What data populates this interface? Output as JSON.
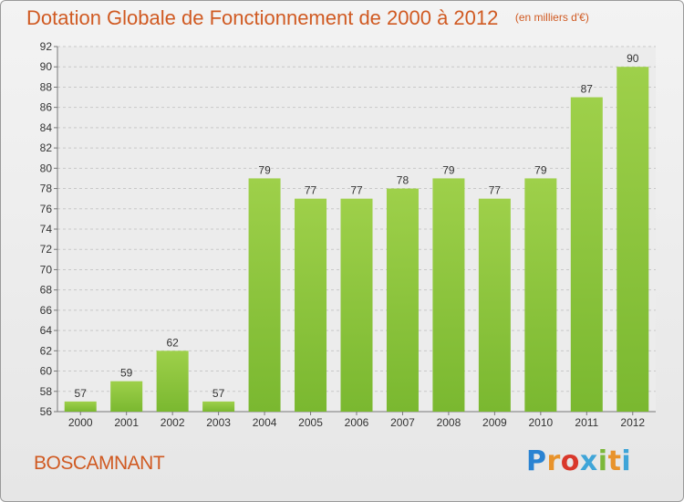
{
  "chart_data": {
    "type": "bar",
    "title": "Dotation Globale de Fonctionnement de 2000 à 2012",
    "unit": "(en milliers d'€)",
    "categories": [
      "2000",
      "2001",
      "2002",
      "2003",
      "2004",
      "2005",
      "2006",
      "2007",
      "2008",
      "2009",
      "2010",
      "2011",
      "2012"
    ],
    "values": [
      57,
      59,
      62,
      57,
      79,
      77,
      77,
      78,
      79,
      77,
      79,
      87,
      90
    ],
    "ylim": [
      56,
      92
    ],
    "yticks": [
      56,
      58,
      60,
      62,
      64,
      66,
      68,
      70,
      72,
      74,
      76,
      78,
      80,
      82,
      84,
      86,
      88,
      90,
      92
    ],
    "grid": true,
    "xlabel": "",
    "ylabel": "",
    "colors": {
      "bar": "#7ab830",
      "bar_top": "#9ed04a",
      "text": "#d05a22"
    }
  },
  "footer": {
    "commune": "BOSCAMNANT",
    "brand_letters": [
      "P",
      "r",
      "o",
      "x",
      "i",
      "t",
      "i"
    ]
  }
}
